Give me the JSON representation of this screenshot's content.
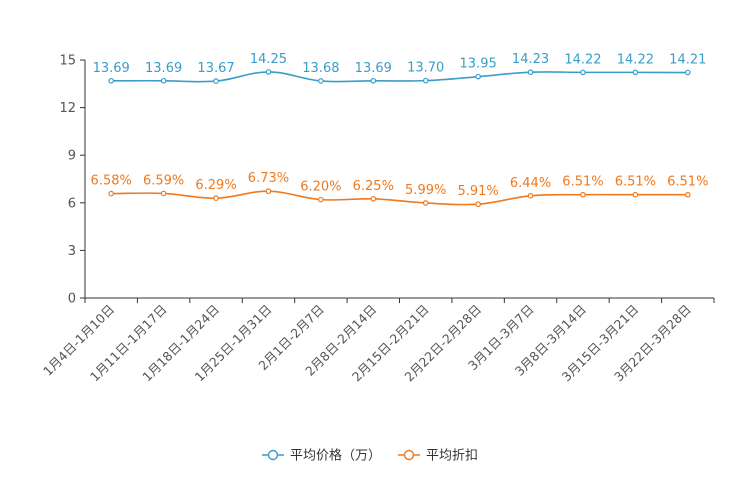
{
  "chart_data": {
    "type": "line",
    "categories": [
      "1月4日-1月10日",
      "1月11日-1月17日",
      "1月18日-1月24日",
      "1月25日-1月31日",
      "2月1日-2月7日",
      "2月8日-2月14日",
      "2月15日-2月21日",
      "2月22日-2月28日",
      "3月1日-3月7日",
      "3月8日-3月14日",
      "3月15日-3月21日",
      "3月22日-3月28日"
    ],
    "series": [
      {
        "name": "平均价格（万）",
        "color": "#3a9dc9",
        "values": [
          13.69,
          13.69,
          13.67,
          14.25,
          13.68,
          13.69,
          13.7,
          13.95,
          14.23,
          14.22,
          14.22,
          14.21
        ],
        "labels": [
          "13.69",
          "13.69",
          "13.67",
          "14.25",
          "13.68",
          "13.69",
          "13.70",
          "13.95",
          "14.23",
          "14.22",
          "14.22",
          "14.21"
        ]
      },
      {
        "name": "平均折扣",
        "color": "#f0791d",
        "values": [
          6.58,
          6.59,
          6.29,
          6.73,
          6.2,
          6.25,
          5.99,
          5.91,
          6.44,
          6.51,
          6.51,
          6.51
        ],
        "labels": [
          "6.58%",
          "6.59%",
          "6.29%",
          "6.73%",
          "6.20%",
          "6.25%",
          "5.99%",
          "5.91%",
          "6.44%",
          "6.51%",
          "6.51%",
          "6.51%"
        ]
      }
    ],
    "yticks": [
      "0",
      "3",
      "6",
      "9",
      "12",
      "15"
    ],
    "ylim": [
      0,
      15
    ],
    "title": "",
    "xlabel": "",
    "ylabel": "",
    "grid": false,
    "legend_position": "bottom-center"
  }
}
